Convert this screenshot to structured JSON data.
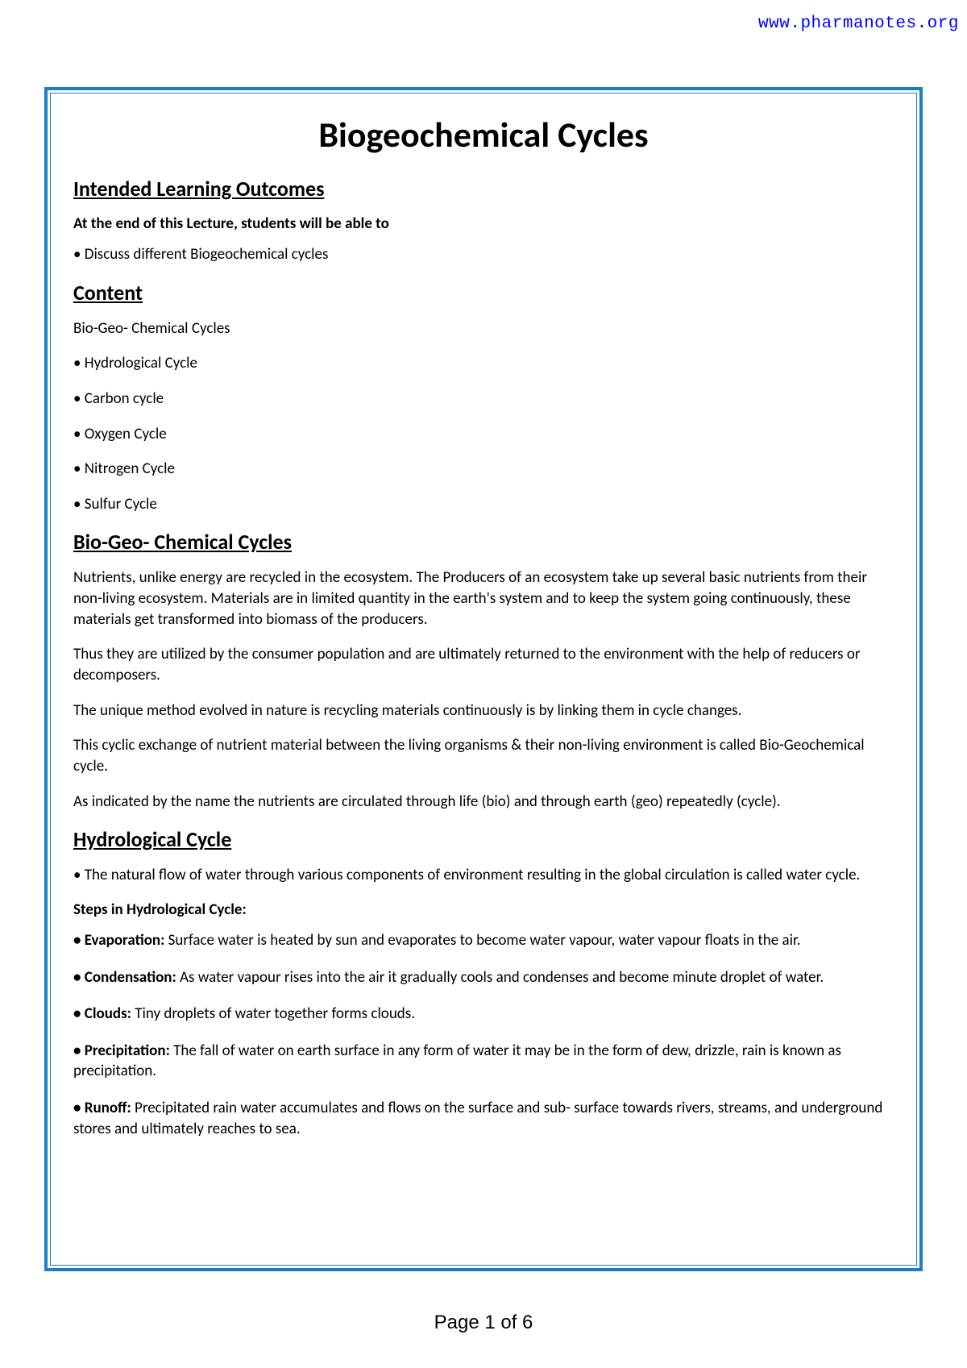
{
  "header": {
    "url": "www.pharmanotes.org"
  },
  "title": "Biogeochemical Cycles",
  "sections": {
    "outcomes": {
      "heading": "Intended Learning Outcomes",
      "intro": "At the end of this Lecture, students will be able to",
      "bullet1": "• Discuss different Biogeochemical cycles"
    },
    "content": {
      "heading": "Content",
      "intro": "Bio-Geo- Chemical Cycles",
      "items": [
        "• Hydrological Cycle",
        "• Carbon cycle",
        "• Oxygen Cycle",
        "• Nitrogen Cycle",
        "• Sulfur Cycle"
      ]
    },
    "biogeo": {
      "heading": "Bio-Geo- Chemical Cycles",
      "p1": "Nutrients, unlike energy are recycled in the ecosystem. The Producers of an ecosystem take up several basic nutrients from their non-living ecosystem. Materials are in limited quantity in the earth's system and to keep the system going continuously, these materials get transformed into biomass of the producers.",
      "p2": "Thus they are utilized by the consumer population and are ultimately returned to the environment with the help of reducers or decomposers.",
      "p3": "The unique method evolved in nature is recycling materials continuously is by linking them in cycle changes.",
      "p4": "This cyclic exchange of nutrient material between the living organisms & their non-living environment is called Bio-Geochemical cycle.",
      "p5": "As indicated by the name the nutrients are circulated through life (bio) and through earth (geo) repeatedly (cycle)."
    },
    "hydro": {
      "heading": "Hydrological Cycle",
      "p1": "• The natural flow of water through various components of environment resulting in the global circulation is called water cycle.",
      "stepsheading": "Steps in Hydrological Cycle:",
      "steps": [
        {
          "label": "• Evaporation:",
          "text": " Surface water is heated by sun and evaporates to become water vapour, water vapour floats in the air."
        },
        {
          "label": "• Condensation:",
          "text": " As water vapour rises into the air it gradually cools and condenses and become minute droplet of water."
        },
        {
          "label": "• Clouds:",
          "text": " Tiny droplets of water together forms clouds."
        },
        {
          "label": "• Precipitation:",
          "text": " The fall of water on earth surface in any form of water it may be in the form of dew, drizzle, rain is known as precipitation."
        },
        {
          "label": "• Runoff:",
          "text": " Precipitated rain water accumulates and flows on the surface and sub- surface towards rivers, streams, and underground stores and ultimately reaches to sea."
        }
      ]
    }
  },
  "footer": {
    "text": "Page 1 of 6"
  },
  "colors": {
    "border": "#1b7fc4",
    "link": "#0000ff",
    "text": "#000000",
    "background": "#ffffff"
  }
}
